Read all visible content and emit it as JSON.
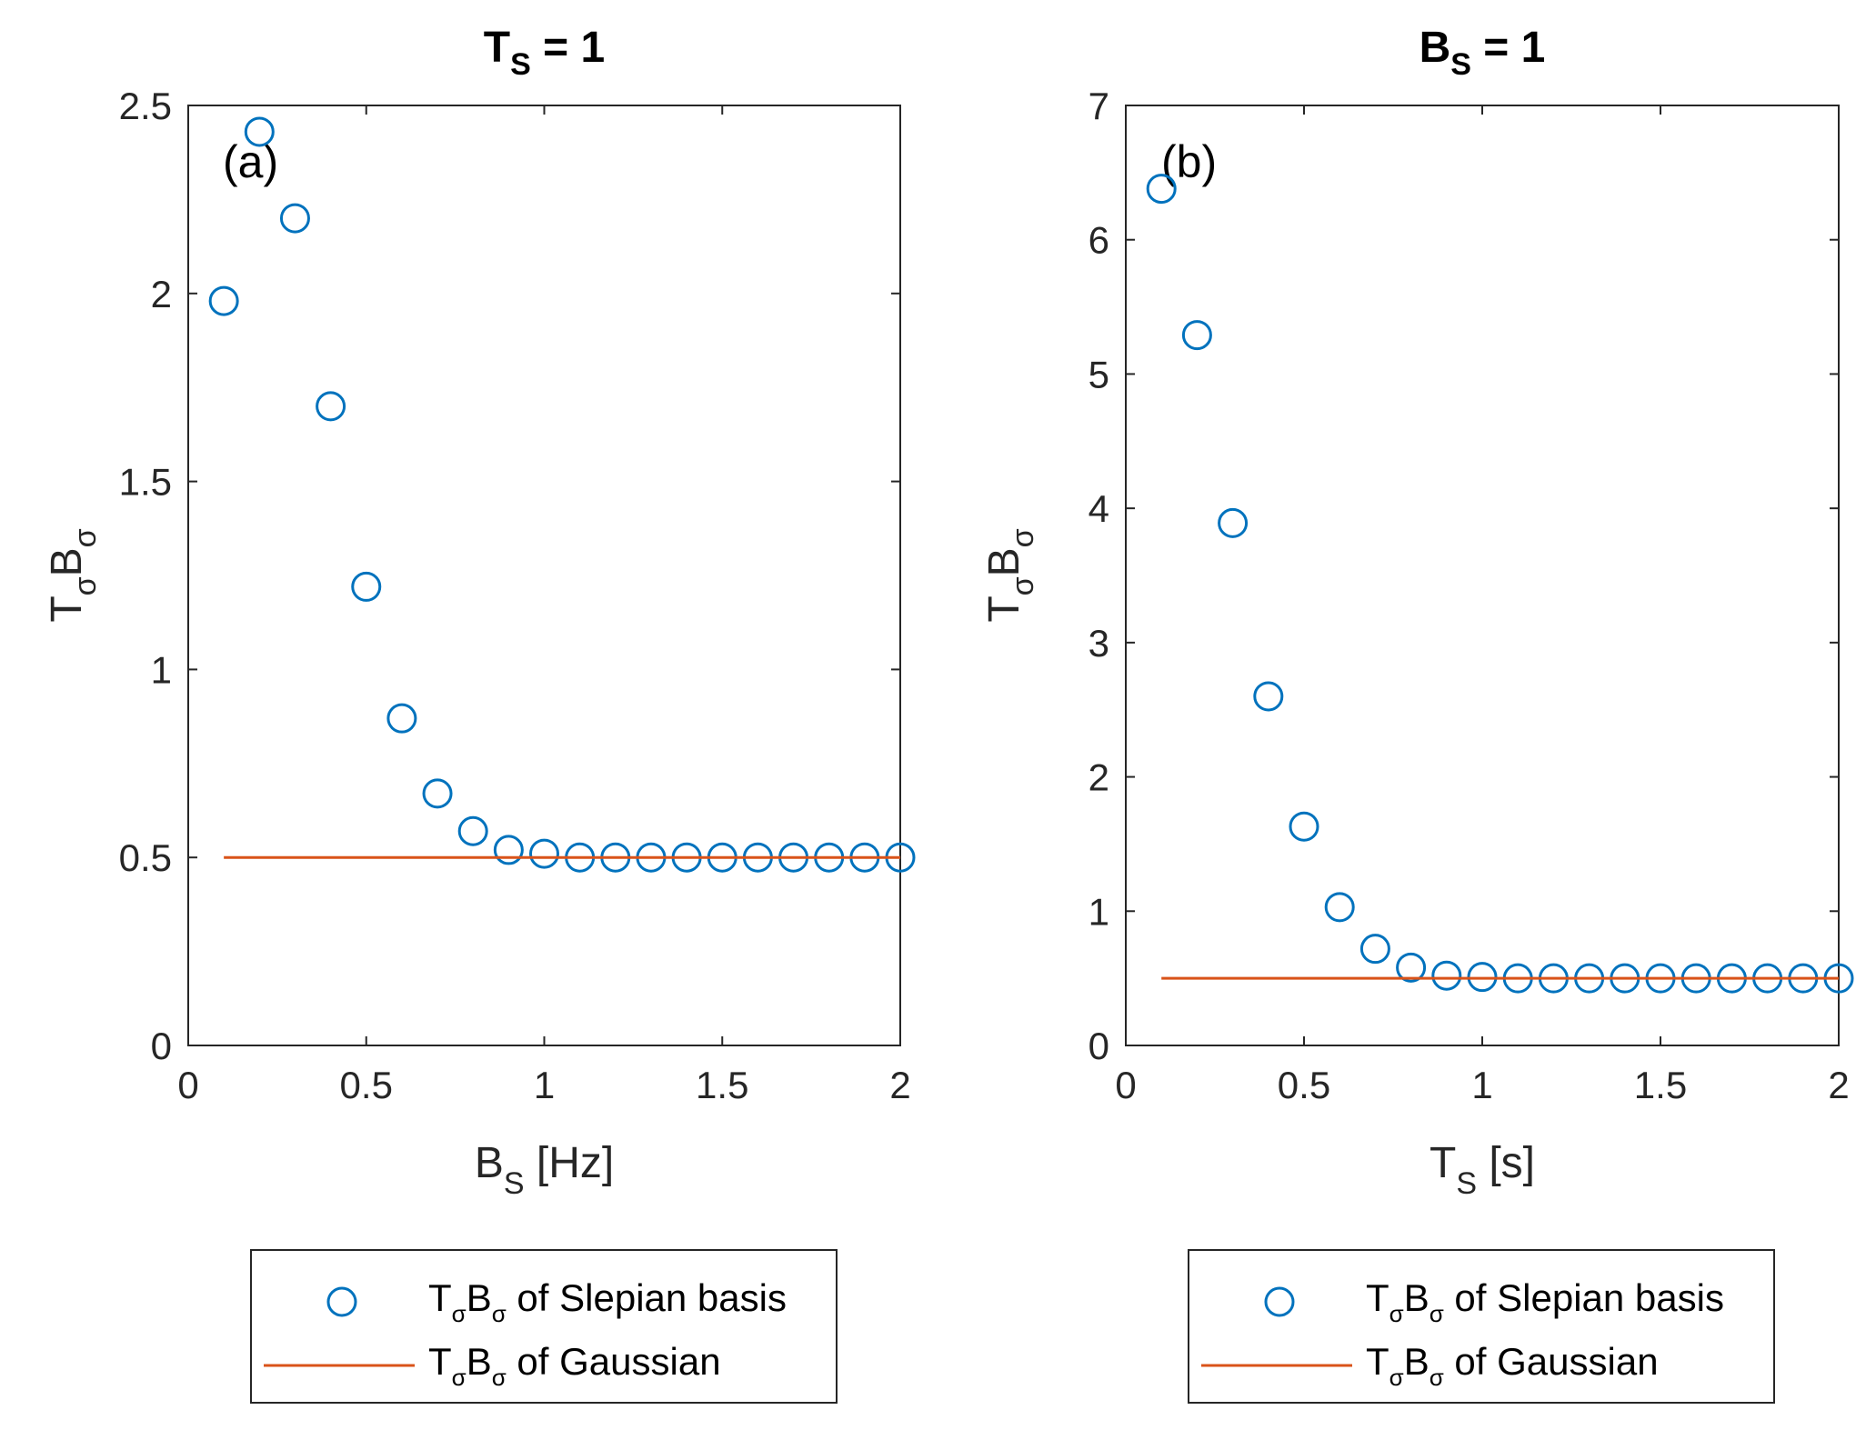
{
  "chart_data": [
    {
      "type": "scatter",
      "panel_label": "(a)",
      "title": {
        "main": "T",
        "sub": "S",
        "rest": " = 1"
      },
      "xlabel": {
        "main": "B",
        "sub": "S",
        "rest": " [Hz]"
      },
      "ylabel": {
        "main": "T",
        "sub": "σ",
        "main2": "B",
        "sub2": "σ"
      },
      "xlim": [
        0,
        2
      ],
      "ylim": [
        0,
        2.5
      ],
      "xticks": [
        0,
        0.5,
        1,
        1.5,
        2
      ],
      "xtick_labels": [
        "0",
        "0.5",
        "1",
        "1.5",
        "2"
      ],
      "yticks": [
        0,
        0.5,
        1,
        1.5,
        2,
        2.5
      ],
      "ytick_labels": [
        "0",
        "0.5",
        "1",
        "1.5",
        "2",
        "2.5"
      ],
      "series": [
        {
          "name": "of Slepian basis",
          "style": "circle",
          "color": "#0072BD",
          "x": [
            0.1,
            0.2,
            0.3,
            0.4,
            0.5,
            0.6,
            0.7,
            0.8,
            0.9,
            1.0,
            1.1,
            1.2,
            1.3,
            1.4,
            1.5,
            1.6,
            1.7,
            1.8,
            1.9,
            2.0
          ],
          "y": [
            1.98,
            2.43,
            2.2,
            1.7,
            1.22,
            0.87,
            0.67,
            0.57,
            0.52,
            0.51,
            0.5,
            0.5,
            0.5,
            0.5,
            0.5,
            0.5,
            0.5,
            0.5,
            0.5,
            0.5
          ]
        },
        {
          "name": "of Gaussian",
          "style": "line",
          "color": "#D95319",
          "x": [
            0.1,
            2.0
          ],
          "y": [
            0.5,
            0.5
          ]
        }
      ],
      "legend": [
        {
          "main": "T",
          "sub": "σ",
          "main2": "B",
          "sub2": "σ",
          "rest": " of Slepian basis"
        },
        {
          "main": "T",
          "sub": "σ",
          "main2": "B",
          "sub2": "σ",
          "rest": " of Gaussian"
        }
      ],
      "legend_position": "below"
    },
    {
      "type": "scatter",
      "panel_label": "(b)",
      "title": {
        "main": "B",
        "sub": "S",
        "rest": " = 1"
      },
      "xlabel": {
        "main": "T",
        "sub": "S",
        "rest": " [s]"
      },
      "ylabel": {
        "main": "T",
        "sub": "σ",
        "main2": "B",
        "sub2": "σ"
      },
      "xlim": [
        0,
        2
      ],
      "ylim": [
        0,
        7
      ],
      "xticks": [
        0,
        0.5,
        1,
        1.5,
        2
      ],
      "xtick_labels": [
        "0",
        "0.5",
        "1",
        "1.5",
        "2"
      ],
      "yticks": [
        0,
        1,
        2,
        3,
        4,
        5,
        6,
        7
      ],
      "ytick_labels": [
        "0",
        "1",
        "2",
        "3",
        "4",
        "5",
        "6",
        "7"
      ],
      "series": [
        {
          "name": "of Slepian basis",
          "style": "circle",
          "color": "#0072BD",
          "x": [
            0.1,
            0.2,
            0.3,
            0.4,
            0.5,
            0.6,
            0.7,
            0.8,
            0.9,
            1.0,
            1.1,
            1.2,
            1.3,
            1.4,
            1.5,
            1.6,
            1.7,
            1.8,
            1.9,
            2.0
          ],
          "y": [
            6.38,
            5.29,
            3.89,
            2.6,
            1.63,
            1.03,
            0.72,
            0.58,
            0.52,
            0.51,
            0.5,
            0.5,
            0.5,
            0.5,
            0.5,
            0.5,
            0.5,
            0.5,
            0.5,
            0.5
          ]
        },
        {
          "name": "of Gaussian",
          "style": "line",
          "color": "#D95319",
          "x": [
            0.1,
            2.0
          ],
          "y": [
            0.5,
            0.5
          ]
        }
      ],
      "legend": [
        {
          "main": "T",
          "sub": "σ",
          "main2": "B",
          "sub2": "σ",
          "rest": " of Slepian basis"
        },
        {
          "main": "T",
          "sub": "σ",
          "main2": "B",
          "sub2": "σ",
          "rest": " of Gaussian"
        }
      ],
      "legend_position": "below"
    }
  ]
}
